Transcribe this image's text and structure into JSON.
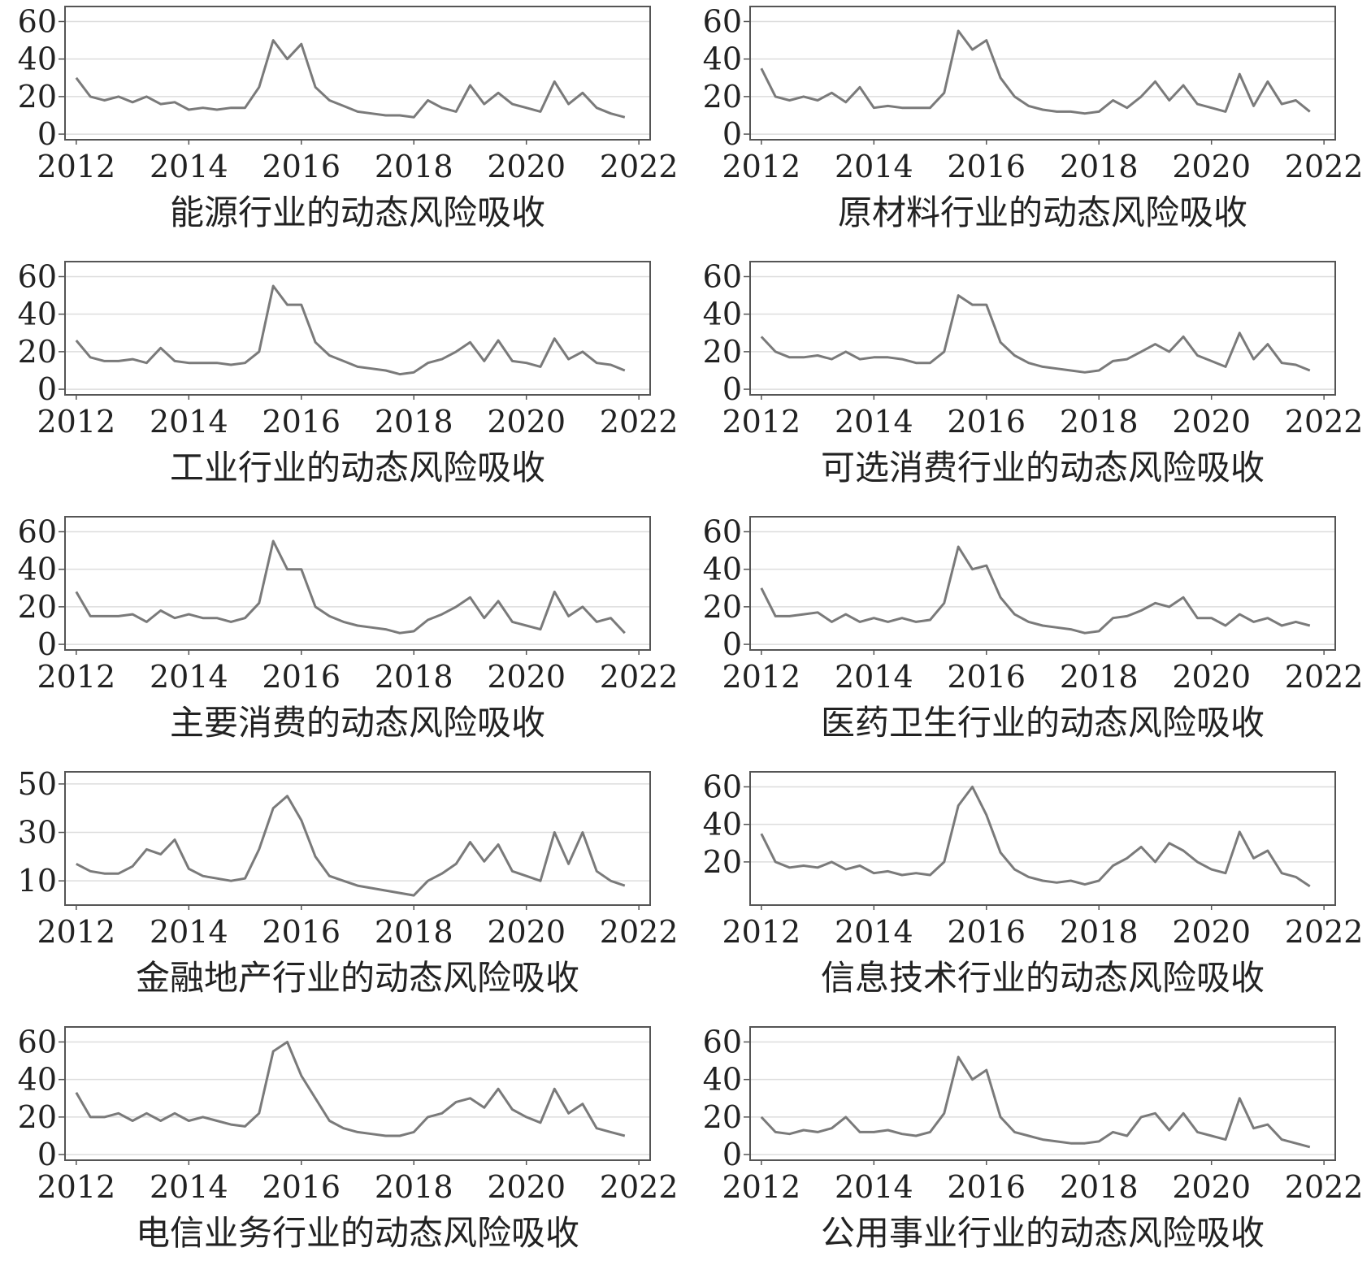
{
  "chart_data": [
    {
      "type": "line",
      "title": "能源行业的动态风险吸收",
      "color": "#7a7a7a",
      "grid": true,
      "x": [
        2012,
        2012.25,
        2012.5,
        2012.75,
        2013,
        2013.25,
        2013.5,
        2013.75,
        2014,
        2014.25,
        2014.5,
        2014.75,
        2015,
        2015.25,
        2015.5,
        2015.75,
        2016,
        2016.25,
        2016.5,
        2016.75,
        2017,
        2017.25,
        2017.5,
        2017.75,
        2018,
        2018.25,
        2018.5,
        2018.75,
        2019,
        2019.25,
        2019.5,
        2019.75,
        2020,
        2020.25,
        2020.5,
        2020.75,
        2021,
        2021.25,
        2021.5,
        2021.75
      ],
      "values": [
        30,
        20,
        18,
        20,
        17,
        20,
        16,
        17,
        13,
        14,
        13,
        14,
        14,
        25,
        50,
        40,
        48,
        25,
        18,
        15,
        12,
        11,
        10,
        10,
        9,
        18,
        14,
        12,
        26,
        16,
        22,
        16,
        14,
        12,
        28,
        16,
        22,
        14,
        11,
        9
      ],
      "xlim": [
        2011.8,
        2022.2
      ],
      "xticks": [
        2012,
        2014,
        2016,
        2018,
        2020,
        2022
      ],
      "ylim": [
        -3,
        68
      ],
      "yticks": [
        0,
        20,
        40,
        60
      ]
    },
    {
      "type": "line",
      "title": "原材料行业的动态风险吸收",
      "color": "#7a7a7a",
      "grid": true,
      "x": [
        2012,
        2012.25,
        2012.5,
        2012.75,
        2013,
        2013.25,
        2013.5,
        2013.75,
        2014,
        2014.25,
        2014.5,
        2014.75,
        2015,
        2015.25,
        2015.5,
        2015.75,
        2016,
        2016.25,
        2016.5,
        2016.75,
        2017,
        2017.25,
        2017.5,
        2017.75,
        2018,
        2018.25,
        2018.5,
        2018.75,
        2019,
        2019.25,
        2019.5,
        2019.75,
        2020,
        2020.25,
        2020.5,
        2020.75,
        2021,
        2021.25,
        2021.5,
        2021.75
      ],
      "values": [
        35,
        20,
        18,
        20,
        18,
        22,
        17,
        25,
        14,
        15,
        14,
        14,
        14,
        22,
        55,
        45,
        50,
        30,
        20,
        15,
        13,
        12,
        12,
        11,
        12,
        18,
        14,
        20,
        28,
        18,
        26,
        16,
        14,
        12,
        32,
        15,
        28,
        16,
        18,
        12
      ],
      "xlim": [
        2011.8,
        2022.2
      ],
      "xticks": [
        2012,
        2014,
        2016,
        2018,
        2020,
        2022
      ],
      "ylim": [
        -3,
        68
      ],
      "yticks": [
        0,
        20,
        40,
        60
      ]
    },
    {
      "type": "line",
      "title": "工业行业的动态风险吸收",
      "color": "#7a7a7a",
      "grid": true,
      "x": [
        2012,
        2012.25,
        2012.5,
        2012.75,
        2013,
        2013.25,
        2013.5,
        2013.75,
        2014,
        2014.25,
        2014.5,
        2014.75,
        2015,
        2015.25,
        2015.5,
        2015.75,
        2016,
        2016.25,
        2016.5,
        2016.75,
        2017,
        2017.25,
        2017.5,
        2017.75,
        2018,
        2018.25,
        2018.5,
        2018.75,
        2019,
        2019.25,
        2019.5,
        2019.75,
        2020,
        2020.25,
        2020.5,
        2020.75,
        2021,
        2021.25,
        2021.5,
        2021.75
      ],
      "values": [
        26,
        17,
        15,
        15,
        16,
        14,
        22,
        15,
        14,
        14,
        14,
        13,
        14,
        20,
        55,
        45,
        45,
        25,
        18,
        15,
        12,
        11,
        10,
        8,
        9,
        14,
        16,
        20,
        25,
        15,
        26,
        15,
        14,
        12,
        27,
        16,
        20,
        14,
        13,
        10
      ],
      "xlim": [
        2011.8,
        2022.2
      ],
      "xticks": [
        2012,
        2014,
        2016,
        2018,
        2020,
        2022
      ],
      "ylim": [
        -3,
        68
      ],
      "yticks": [
        0,
        20,
        40,
        60
      ]
    },
    {
      "type": "line",
      "title": "可选消费行业的动态风险吸收",
      "color": "#7a7a7a",
      "grid": true,
      "x": [
        2012,
        2012.25,
        2012.5,
        2012.75,
        2013,
        2013.25,
        2013.5,
        2013.75,
        2014,
        2014.25,
        2014.5,
        2014.75,
        2015,
        2015.25,
        2015.5,
        2015.75,
        2016,
        2016.25,
        2016.5,
        2016.75,
        2017,
        2017.25,
        2017.5,
        2017.75,
        2018,
        2018.25,
        2018.5,
        2018.75,
        2019,
        2019.25,
        2019.5,
        2019.75,
        2020,
        2020.25,
        2020.5,
        2020.75,
        2021,
        2021.25,
        2021.5,
        2021.75
      ],
      "values": [
        28,
        20,
        17,
        17,
        18,
        16,
        20,
        16,
        17,
        17,
        16,
        14,
        14,
        20,
        50,
        45,
        45,
        25,
        18,
        14,
        12,
        11,
        10,
        9,
        10,
        15,
        16,
        20,
        24,
        20,
        28,
        18,
        15,
        12,
        30,
        16,
        24,
        14,
        13,
        10
      ],
      "xlim": [
        2011.8,
        2022.2
      ],
      "xticks": [
        2012,
        2014,
        2016,
        2018,
        2020,
        2022
      ],
      "ylim": [
        -3,
        68
      ],
      "yticks": [
        0,
        20,
        40,
        60
      ]
    },
    {
      "type": "line",
      "title": "主要消费的动态风险吸收",
      "color": "#7a7a7a",
      "grid": true,
      "x": [
        2012,
        2012.25,
        2012.5,
        2012.75,
        2013,
        2013.25,
        2013.5,
        2013.75,
        2014,
        2014.25,
        2014.5,
        2014.75,
        2015,
        2015.25,
        2015.5,
        2015.75,
        2016,
        2016.25,
        2016.5,
        2016.75,
        2017,
        2017.25,
        2017.5,
        2017.75,
        2018,
        2018.25,
        2018.5,
        2018.75,
        2019,
        2019.25,
        2019.5,
        2019.75,
        2020,
        2020.25,
        2020.5,
        2020.75,
        2021,
        2021.25,
        2021.5,
        2021.75
      ],
      "values": [
        28,
        15,
        15,
        15,
        16,
        12,
        18,
        14,
        16,
        14,
        14,
        12,
        14,
        22,
        55,
        40,
        40,
        20,
        15,
        12,
        10,
        9,
        8,
        6,
        7,
        13,
        16,
        20,
        25,
        14,
        23,
        12,
        10,
        8,
        28,
        15,
        20,
        12,
        14,
        6
      ],
      "xlim": [
        2011.8,
        2022.2
      ],
      "xticks": [
        2012,
        2014,
        2016,
        2018,
        2020,
        2022
      ],
      "ylim": [
        -3,
        68
      ],
      "yticks": [
        0,
        20,
        40,
        60
      ]
    },
    {
      "type": "line",
      "title": "医药卫生行业的动态风险吸收",
      "color": "#7a7a7a",
      "grid": true,
      "x": [
        2012,
        2012.25,
        2012.5,
        2012.75,
        2013,
        2013.25,
        2013.5,
        2013.75,
        2014,
        2014.25,
        2014.5,
        2014.75,
        2015,
        2015.25,
        2015.5,
        2015.75,
        2016,
        2016.25,
        2016.5,
        2016.75,
        2017,
        2017.25,
        2017.5,
        2017.75,
        2018,
        2018.25,
        2018.5,
        2018.75,
        2019,
        2019.25,
        2019.5,
        2019.75,
        2020,
        2020.25,
        2020.5,
        2020.75,
        2021,
        2021.25,
        2021.5,
        2021.75
      ],
      "values": [
        30,
        15,
        15,
        16,
        17,
        12,
        16,
        12,
        14,
        12,
        14,
        12,
        13,
        22,
        52,
        40,
        42,
        25,
        16,
        12,
        10,
        9,
        8,
        6,
        7,
        14,
        15,
        18,
        22,
        20,
        25,
        14,
        14,
        10,
        16,
        12,
        14,
        10,
        12,
        10
      ],
      "xlim": [
        2011.8,
        2022.2
      ],
      "xticks": [
        2012,
        2014,
        2016,
        2018,
        2020,
        2022
      ],
      "ylim": [
        -3,
        68
      ],
      "yticks": [
        0,
        20,
        40,
        60
      ]
    },
    {
      "type": "line",
      "title": "金融地产行业的动态风险吸收",
      "color": "#7a7a7a",
      "grid": true,
      "x": [
        2012,
        2012.25,
        2012.5,
        2012.75,
        2013,
        2013.25,
        2013.5,
        2013.75,
        2014,
        2014.25,
        2014.5,
        2014.75,
        2015,
        2015.25,
        2015.5,
        2015.75,
        2016,
        2016.25,
        2016.5,
        2016.75,
        2017,
        2017.25,
        2017.5,
        2017.75,
        2018,
        2018.25,
        2018.5,
        2018.75,
        2019,
        2019.25,
        2019.5,
        2019.75,
        2020,
        2020.25,
        2020.5,
        2020.75,
        2021,
        2021.25,
        2021.5,
        2021.75
      ],
      "values": [
        17,
        14,
        13,
        13,
        16,
        23,
        21,
        27,
        15,
        12,
        11,
        10,
        11,
        23,
        40,
        45,
        35,
        20,
        12,
        10,
        8,
        7,
        6,
        5,
        4,
        10,
        13,
        17,
        26,
        18,
        25,
        14,
        12,
        10,
        30,
        17,
        30,
        14,
        10,
        8
      ],
      "xlim": [
        2011.8,
        2022.2
      ],
      "xticks": [
        2012,
        2014,
        2016,
        2018,
        2020,
        2022
      ],
      "ylim": [
        0,
        55
      ],
      "yticks": [
        10,
        30,
        50
      ]
    },
    {
      "type": "line",
      "title": "信息技术行业的动态风险吸收",
      "color": "#7a7a7a",
      "grid": true,
      "x": [
        2012,
        2012.25,
        2012.5,
        2012.75,
        2013,
        2013.25,
        2013.5,
        2013.75,
        2014,
        2014.25,
        2014.5,
        2014.75,
        2015,
        2015.25,
        2015.5,
        2015.75,
        2016,
        2016.25,
        2016.5,
        2016.75,
        2017,
        2017.25,
        2017.5,
        2017.75,
        2018,
        2018.25,
        2018.5,
        2018.75,
        2019,
        2019.25,
        2019.5,
        2019.75,
        2020,
        2020.25,
        2020.5,
        2020.75,
        2021,
        2021.25,
        2021.5,
        2021.75
      ],
      "values": [
        35,
        20,
        17,
        18,
        17,
        20,
        16,
        18,
        14,
        15,
        13,
        14,
        13,
        20,
        50,
        60,
        45,
        25,
        16,
        12,
        10,
        9,
        10,
        8,
        10,
        18,
        22,
        28,
        20,
        30,
        26,
        20,
        16,
        14,
        36,
        22,
        26,
        14,
        12,
        7
      ],
      "xlim": [
        2011.8,
        2022.2
      ],
      "xticks": [
        2012,
        2014,
        2016,
        2018,
        2020,
        2022
      ],
      "ylim": [
        -3,
        68
      ],
      "yticks": [
        20,
        40,
        60
      ]
    },
    {
      "type": "line",
      "title": "电信业务行业的动态风险吸收",
      "color": "#7a7a7a",
      "grid": true,
      "x": [
        2012,
        2012.25,
        2012.5,
        2012.75,
        2013,
        2013.25,
        2013.5,
        2013.75,
        2014,
        2014.25,
        2014.5,
        2014.75,
        2015,
        2015.25,
        2015.5,
        2015.75,
        2016,
        2016.25,
        2016.5,
        2016.75,
        2017,
        2017.25,
        2017.5,
        2017.75,
        2018,
        2018.25,
        2018.5,
        2018.75,
        2019,
        2019.25,
        2019.5,
        2019.75,
        2020,
        2020.25,
        2020.5,
        2020.75,
        2021,
        2021.25,
        2021.5,
        2021.75
      ],
      "values": [
        33,
        20,
        20,
        22,
        18,
        22,
        18,
        22,
        18,
        20,
        18,
        16,
        15,
        22,
        55,
        60,
        42,
        30,
        18,
        14,
        12,
        11,
        10,
        10,
        12,
        20,
        22,
        28,
        30,
        25,
        35,
        24,
        20,
        17,
        35,
        22,
        27,
        14,
        12,
        10
      ],
      "xlim": [
        2011.8,
        2022.2
      ],
      "xticks": [
        2012,
        2014,
        2016,
        2018,
        2020,
        2022
      ],
      "ylim": [
        -3,
        68
      ],
      "yticks": [
        0,
        20,
        40,
        60
      ]
    },
    {
      "type": "line",
      "title": "公用事业行业的动态风险吸收",
      "color": "#7a7a7a",
      "grid": true,
      "x": [
        2012,
        2012.25,
        2012.5,
        2012.75,
        2013,
        2013.25,
        2013.5,
        2013.75,
        2014,
        2014.25,
        2014.5,
        2014.75,
        2015,
        2015.25,
        2015.5,
        2015.75,
        2016,
        2016.25,
        2016.5,
        2016.75,
        2017,
        2017.25,
        2017.5,
        2017.75,
        2018,
        2018.25,
        2018.5,
        2018.75,
        2019,
        2019.25,
        2019.5,
        2019.75,
        2020,
        2020.25,
        2020.5,
        2020.75,
        2021,
        2021.25,
        2021.5,
        2021.75
      ],
      "values": [
        20,
        12,
        11,
        13,
        12,
        14,
        20,
        12,
        12,
        13,
        11,
        10,
        12,
        22,
        52,
        40,
        45,
        20,
        12,
        10,
        8,
        7,
        6,
        6,
        7,
        12,
        10,
        20,
        22,
        13,
        22,
        12,
        10,
        8,
        30,
        14,
        16,
        8,
        6,
        4
      ],
      "xlim": [
        2011.8,
        2022.2
      ],
      "xticks": [
        2012,
        2014,
        2016,
        2018,
        2020,
        2022
      ],
      "ylim": [
        -3,
        68
      ],
      "yticks": [
        0,
        20,
        40,
        60
      ]
    }
  ]
}
